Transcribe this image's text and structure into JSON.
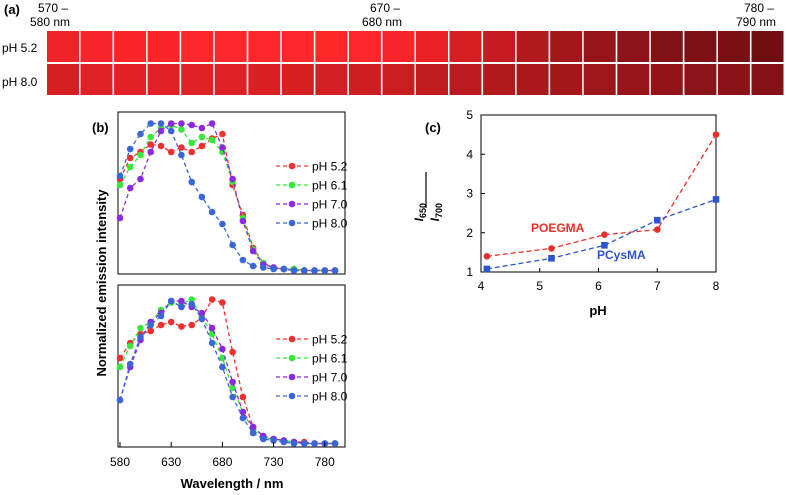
{
  "panel_a": {
    "label": "(a)",
    "range_labels": [
      {
        "line1": "570 –",
        "line2": "580 nm"
      },
      {
        "line1": "670 –",
        "line2": "680 nm"
      },
      {
        "line1": "780 –",
        "line2": "790 nm"
      }
    ],
    "rows": [
      {
        "label": "pH 5.2",
        "brightness": [
          0.92,
          0.95,
          0.97,
          0.98,
          0.99,
          0.99,
          0.99,
          0.99,
          1.0,
          0.99,
          0.95,
          0.88,
          0.78,
          0.68,
          0.58,
          0.5,
          0.44,
          0.38,
          0.33,
          0.3,
          0.28,
          0.22
        ]
      },
      {
        "label": "pH 8.0",
        "brightness": [
          0.78,
          0.82,
          0.84,
          0.84,
          0.83,
          0.82,
          0.8,
          0.78,
          0.76,
          0.73,
          0.7,
          0.66,
          0.62,
          0.58,
          0.54,
          0.5,
          0.47,
          0.44,
          0.41,
          0.38,
          0.36,
          0.34
        ]
      }
    ]
  },
  "colors": {
    "ph52": "#f03030",
    "ph61": "#38e838",
    "ph70": "#8a2be2",
    "ph80": "#3a66d8",
    "poegma": "#e8302a",
    "pcysma": "#2f55cc"
  },
  "chart_data": [
    {
      "id": "b-top",
      "type": "line",
      "panel_label": "(b)",
      "x": [
        580,
        590,
        600,
        610,
        620,
        630,
        640,
        650,
        660,
        670,
        680,
        690,
        700,
        710,
        720,
        730,
        740,
        750,
        760,
        770,
        780,
        790
      ],
      "series": [
        {
          "name": "pH 5.2",
          "values": [
            0.62,
            0.76,
            0.8,
            0.85,
            0.84,
            0.8,
            0.83,
            0.8,
            0.84,
            0.89,
            0.92,
            0.58,
            0.38,
            0.16,
            0.06,
            0.03,
            0.02,
            0.02,
            0.01,
            0.01,
            0.01,
            0.01
          ]
        },
        {
          "name": "pH 6.1",
          "values": [
            0.58,
            0.7,
            0.78,
            0.9,
            0.96,
            0.98,
            0.95,
            0.86,
            0.9,
            0.88,
            0.8,
            0.6,
            0.36,
            0.15,
            0.06,
            0.03,
            0.02,
            0.02,
            0.01,
            0.01,
            0.01,
            0.01
          ]
        },
        {
          "name": "pH 7.0",
          "values": [
            0.36,
            0.56,
            0.62,
            0.8,
            0.94,
            0.99,
            0.99,
            0.98,
            0.96,
            0.99,
            0.83,
            0.62,
            0.34,
            0.14,
            0.05,
            0.03,
            0.02,
            0.01,
            0.01,
            0.01,
            0.01,
            0.01
          ]
        },
        {
          "name": "pH 8.0",
          "values": [
            0.64,
            0.82,
            0.92,
            0.99,
            0.99,
            0.94,
            0.78,
            0.6,
            0.5,
            0.4,
            0.32,
            0.18,
            0.08,
            0.04,
            0.03,
            0.02,
            0.02,
            0.01,
            0.01,
            0.01,
            0.01,
            0.01
          ]
        }
      ],
      "ylim": [
        0,
        1.0
      ]
    },
    {
      "id": "b-bottom",
      "type": "line",
      "x": [
        580,
        590,
        600,
        610,
        620,
        630,
        640,
        650,
        660,
        670,
        680,
        690,
        700,
        710,
        720,
        730,
        740,
        750,
        760,
        770,
        780,
        790
      ],
      "series": [
        {
          "name": "pH 5.2",
          "values": [
            0.58,
            0.68,
            0.74,
            0.76,
            0.8,
            0.82,
            0.79,
            0.8,
            0.85,
            0.97,
            0.95,
            0.62,
            0.32,
            0.12,
            0.06,
            0.04,
            0.03,
            0.02,
            0.02,
            0.01,
            0.01,
            0.01
          ]
        },
        {
          "name": "pH 6.1",
          "values": [
            0.52,
            0.66,
            0.78,
            0.82,
            0.9,
            0.95,
            0.94,
            0.97,
            0.85,
            0.74,
            0.58,
            0.38,
            0.22,
            0.1,
            0.05,
            0.04,
            0.03,
            0.02,
            0.01,
            0.01,
            0.01,
            0.01
          ]
        },
        {
          "name": "pH 7.0",
          "values": [
            0.3,
            0.52,
            0.7,
            0.82,
            0.88,
            0.96,
            0.96,
            0.92,
            0.88,
            0.78,
            0.64,
            0.42,
            0.22,
            0.12,
            0.06,
            0.04,
            0.03,
            0.02,
            0.01,
            0.01,
            0.01,
            0.01
          ]
        },
        {
          "name": "pH 8.0",
          "values": [
            0.3,
            0.54,
            0.72,
            0.8,
            0.86,
            0.96,
            0.92,
            0.94,
            0.84,
            0.68,
            0.52,
            0.32,
            0.18,
            0.08,
            0.04,
            0.03,
            0.02,
            0.01,
            0.01,
            0.01,
            0.01,
            0.01
          ]
        }
      ],
      "ylim": [
        0,
        1.0
      ]
    },
    {
      "id": "c",
      "type": "line",
      "panel_label": "(c)",
      "xlabel": "pH",
      "x": [
        4.1,
        5.2,
        6.1,
        7.0,
        8.0
      ],
      "series": [
        {
          "name": "POEGMA",
          "values": [
            1.4,
            1.6,
            1.95,
            2.08,
            4.5
          ]
        },
        {
          "name": "PCysMA",
          "values": [
            1.08,
            1.35,
            1.68,
            2.32,
            2.85
          ]
        }
      ],
      "xlim": [
        4,
        8
      ],
      "ylim": [
        1,
        5
      ],
      "xticks": [
        "4",
        "5",
        "6",
        "7",
        "8"
      ],
      "yticks": [
        "1",
        "2",
        "3",
        "4",
        "5"
      ]
    }
  ],
  "axes_b": {
    "ylabel": "Normalized emission intensity",
    "xlabel": "Wavelength / nm",
    "xticks": [
      "580",
      "630",
      "680",
      "730",
      "780"
    ]
  },
  "axes_c": {
    "ylabel_num": "I",
    "ylabel_num_sub": "650",
    "ylabel_den": "I",
    "ylabel_den_sub": "700"
  }
}
